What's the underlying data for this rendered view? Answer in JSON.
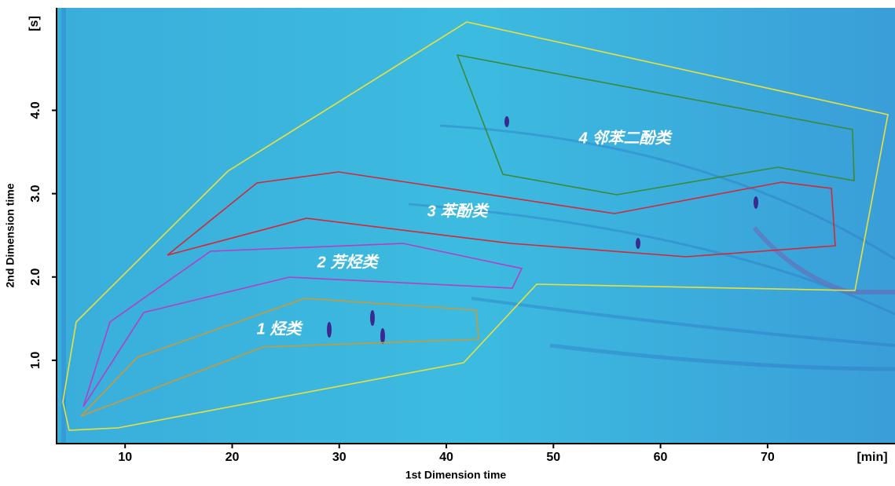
{
  "chart_data": {
    "type": "contour",
    "x_label": "1st Dimension time",
    "y_label": "2nd Dimension time",
    "x_unit": "[min]",
    "y_unit": "[s]",
    "xlim": [
      3.6,
      81.9
    ],
    "xticks": [
      10,
      20,
      30,
      40,
      50,
      60,
      70
    ],
    "ylim": [
      0,
      5.23
    ],
    "yticks": [
      {
        "value": 1,
        "label": "1.0"
      },
      {
        "value": 2,
        "label": "2.0"
      },
      {
        "value": 3,
        "label": "3.0"
      },
      {
        "value": 4,
        "label": "4.0"
      }
    ],
    "regions": [
      {
        "label": "1 烃类",
        "color": "#c89a3a"
      },
      {
        "label": "2 芳烃类",
        "color": "#b040c8"
      },
      {
        "label": "3 苯酚类",
        "color": "#d02a3a"
      },
      {
        "label": "4 邻苯二酚类",
        "color": "#3a8a3a"
      }
    ],
    "envelope_color": "#e8e040"
  }
}
